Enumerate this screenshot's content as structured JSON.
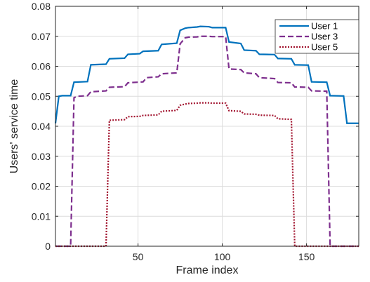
{
  "chart_data": {
    "type": "line",
    "title": "",
    "xlabel": "Frame index",
    "ylabel": "Users' service time",
    "xlim": [
      1,
      181
    ],
    "ylim": [
      0,
      0.08
    ],
    "xticks": [
      50,
      100,
      150
    ],
    "yticks": [
      0,
      0.01,
      0.02,
      0.03,
      0.04,
      0.05,
      0.06,
      0.07,
      0.08
    ],
    "xtick_labels": [
      "50",
      "100",
      "150"
    ],
    "ytick_labels": [
      "0",
      "0.01",
      "0.02",
      "0.03",
      "0.04",
      "0.05",
      "0.06",
      "0.07",
      "0.08"
    ],
    "grid": true,
    "legend_position": "top-right",
    "series": [
      {
        "name": "User 1",
        "color": "#0072BD",
        "style": "solid",
        "x": [
          1,
          3,
          5,
          10,
          12,
          20,
          22,
          31,
          33,
          42,
          44,
          51,
          53,
          62,
          64,
          73,
          75,
          78,
          80,
          85,
          87,
          92,
          94,
          102,
          104,
          111,
          113,
          120,
          122,
          131,
          133,
          141,
          143,
          151,
          153,
          162,
          164,
          172,
          174,
          181
        ],
        "y": [
          0.041,
          0.05,
          0.0502,
          0.0502,
          0.0547,
          0.0549,
          0.0605,
          0.0607,
          0.0625,
          0.0627,
          0.064,
          0.0642,
          0.065,
          0.0652,
          0.0673,
          0.0677,
          0.072,
          0.0727,
          0.0729,
          0.0731,
          0.0733,
          0.0732,
          0.0729,
          0.0729,
          0.0681,
          0.0676,
          0.0654,
          0.0652,
          0.064,
          0.0639,
          0.0626,
          0.0625,
          0.0605,
          0.0604,
          0.0548,
          0.0547,
          0.0502,
          0.0501,
          0.041,
          0.041
        ]
      },
      {
        "name": "User 3",
        "color": "#7E2F8E",
        "style": "dashed",
        "x": [
          1,
          10,
          12,
          14,
          20,
          22,
          31,
          33,
          42,
          44,
          53,
          55,
          62,
          64,
          73,
          75,
          78,
          80,
          85,
          87,
          92,
          94,
          102,
          104,
          111,
          113,
          120,
          122,
          131,
          133,
          141,
          143,
          151,
          153,
          162,
          164,
          181
        ],
        "y": [
          0,
          0,
          0.0495,
          0.05,
          0.0502,
          0.0515,
          0.0518,
          0.053,
          0.0532,
          0.0545,
          0.0548,
          0.0562,
          0.0565,
          0.0575,
          0.0578,
          0.0675,
          0.0695,
          0.0697,
          0.0698,
          0.07,
          0.07,
          0.0699,
          0.0699,
          0.0591,
          0.0589,
          0.0578,
          0.0575,
          0.0562,
          0.0559,
          0.0546,
          0.0545,
          0.0531,
          0.053,
          0.0518,
          0.0517,
          0,
          0
        ]
      },
      {
        "name": "User 5",
        "color": "#A2142F",
        "style": "dotted",
        "x": [
          1,
          31,
          33,
          42,
          44,
          51,
          53,
          62,
          64,
          73,
          75,
          78,
          80,
          85,
          87,
          92,
          94,
          102,
          104,
          111,
          113,
          120,
          122,
          131,
          133,
          141,
          143,
          181
        ],
        "y": [
          0,
          0,
          0.042,
          0.0422,
          0.0432,
          0.0433,
          0.0436,
          0.0438,
          0.045,
          0.0453,
          0.047,
          0.0474,
          0.0476,
          0.0477,
          0.0478,
          0.0478,
          0.0477,
          0.0477,
          0.0452,
          0.045,
          0.0441,
          0.044,
          0.0437,
          0.0436,
          0.0425,
          0.0423,
          0,
          0
        ]
      }
    ]
  }
}
